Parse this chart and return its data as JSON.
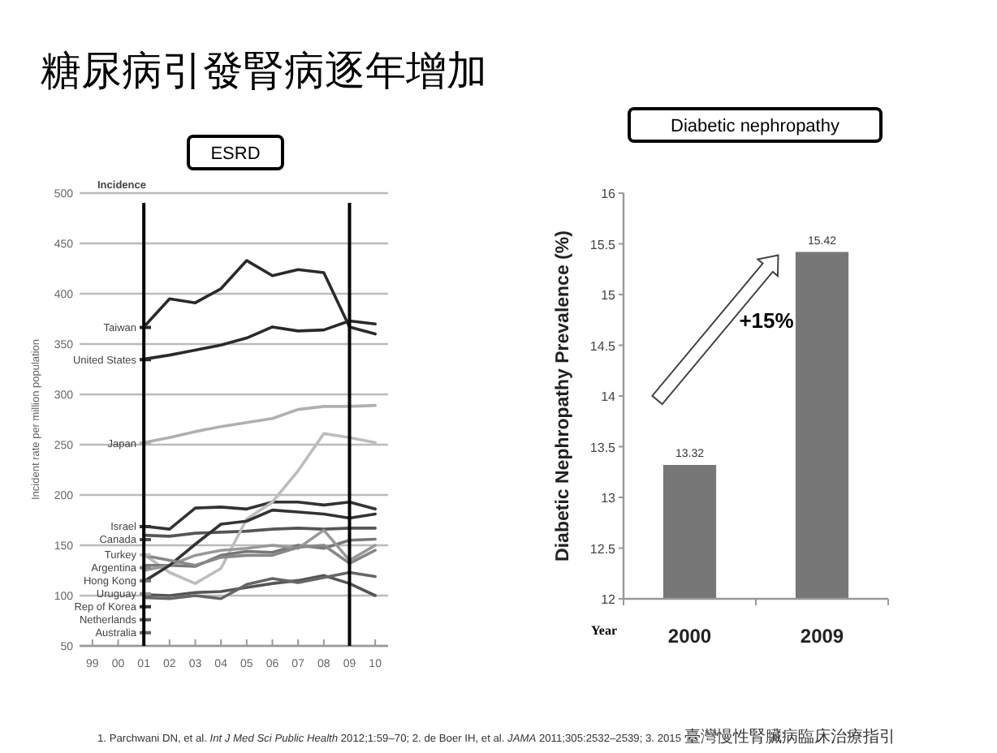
{
  "chart_data": [
    {
      "type": "line",
      "title": "糖尿病引發腎病逐年增加",
      "subtitle": "ESRD",
      "ylabel": "Incident rate per million population",
      "annotations": [
        "Incidence"
      ],
      "x": [
        2001,
        2002,
        2003,
        2004,
        2005,
        2006,
        2007,
        2008,
        2009,
        2010
      ],
      "xlim": [
        1998.5,
        2010.5
      ],
      "xticks": [
        {
          "value": 1999,
          "label": "99"
        },
        {
          "value": 2000,
          "label": "00"
        },
        {
          "value": 2001,
          "label": "01"
        },
        {
          "value": 2002,
          "label": "02"
        },
        {
          "value": 2003,
          "label": "03"
        },
        {
          "value": 2004,
          "label": "04"
        },
        {
          "value": 2005,
          "label": "05"
        },
        {
          "value": 2006,
          "label": "06"
        },
        {
          "value": 2007,
          "label": "07"
        },
        {
          "value": 2008,
          "label": "08"
        },
        {
          "value": 2009,
          "label": "09"
        },
        {
          "value": 2010,
          "label": "10"
        }
      ],
      "ylim": [
        50,
        500
      ],
      "yticks": [
        50,
        100,
        150,
        200,
        250,
        300,
        350,
        400,
        450,
        500
      ],
      "grid": "y",
      "legend": "left",
      "ref_lines": [
        {
          "axis": "x",
          "value": 2001,
          "color": "#000000"
        },
        {
          "axis": "x",
          "value": 2009,
          "color": "#000000"
        }
      ],
      "series": [
        {
          "name": "Taiwan",
          "color": "#2a2a2a",
          "values": [
            367,
            395,
            391,
            405,
            433,
            418,
            424,
            421,
            367,
            360
          ]
        },
        {
          "name": "United States",
          "color": "#2a2a2a",
          "values": [
            335,
            339,
            344,
            349,
            356,
            367,
            363,
            364,
            373,
            370
          ]
        },
        {
          "name": "Japan",
          "color": "#b0b0b0",
          "values": [
            252,
            257,
            263,
            268,
            272,
            276,
            285,
            288,
            288,
            289
          ]
        },
        {
          "name": "Israel",
          "color": "#333333",
          "values": [
            169,
            166,
            187,
            188,
            186,
            193,
            193,
            190,
            193,
            186
          ]
        },
        {
          "name": "Canada",
          "color": "#555555",
          "values": [
            160,
            159,
            162,
            163,
            164,
            166,
            167,
            166,
            167,
            167
          ]
        },
        {
          "name": "Turkey",
          "color": "#bdbdbd",
          "values": [
            141,
            123,
            112,
            127,
            176,
            193,
            224,
            261,
            257,
            252
          ]
        },
        {
          "name": "Hong Kong",
          "color": "#777777",
          "values": [
            130,
            130,
            129,
            140,
            144,
            143,
            150,
            147,
            155,
            156
          ]
        },
        {
          "name": "Uruguay",
          "color": "#999999",
          "values": [
            125,
            130,
            140,
            145,
            147,
            150,
            147,
            165,
            135,
            150
          ]
        },
        {
          "name": "Rep of Korea",
          "color": "#333333",
          "values": [
            114,
            130,
            151,
            171,
            174,
            185,
            183,
            181,
            177,
            181
          ]
        },
        {
          "name": "Netherlands",
          "color": "#555555",
          "values": [
            101,
            100,
            103,
            104,
            108,
            112,
            115,
            120,
            112,
            100
          ]
        },
        {
          "name": "Australia",
          "color": "#666666",
          "values": [
            98,
            97,
            100,
            97,
            111,
            117,
            113,
            118,
            123,
            119
          ]
        },
        {
          "name": "Argentina",
          "color": "#888888",
          "values": [
            140,
            135,
            130,
            138,
            140,
            140,
            148,
            150,
            132,
            145
          ]
        }
      ]
    },
    {
      "type": "bar",
      "title": "Diabetic nephropathy",
      "xlabel": "Year",
      "ylabel": "Diabetic Nephropathy Prevalence (%)",
      "categories": [
        "2000",
        "2009"
      ],
      "values": [
        13.32,
        15.42
      ],
      "color": "#777777",
      "data_labels": true,
      "ylim": [
        12,
        16
      ],
      "yticks": [
        12,
        12.5,
        13,
        13.5,
        14,
        14.5,
        15,
        15.5,
        16
      ],
      "annotations": [
        "+15%",
        "1. Parchwani DN, et al. *Int J Med Sci Public Health* 2012;1:59–70; 2. de Boer IH, et al. *JAMA* 2011;305:2532–2539; 3. 2015 臺灣慢性腎臟病臨床治療指引"
      ]
    }
  ]
}
